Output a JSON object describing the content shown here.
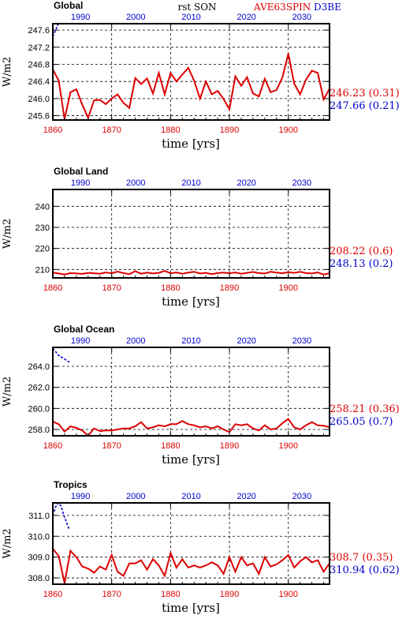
{
  "header": {
    "center": "rst SON",
    "label_red": "AVE63SPIN",
    "label_blue": "D3BE",
    "red_color": "#dd0000",
    "blue_color": "#0000cc"
  },
  "xlabel": "time [yrs]",
  "chart_data": [
    {
      "type": "line",
      "title": "Global",
      "ylabel": "W/m2",
      "ylim": [
        245.5,
        247.75
      ],
      "yticks": [
        245.6,
        246.0,
        246.4,
        246.8,
        247.2,
        247.6
      ],
      "ytick_labels": [
        "245.6",
        "246.0",
        "246.4",
        "246.8",
        "247.2",
        "247.6"
      ],
      "bottom_axis": {
        "range": [
          1860,
          1907
        ],
        "ticks": [
          1860,
          1870,
          1880,
          1890,
          1900
        ],
        "tick_labels": [
          "1860",
          "1870",
          "1880",
          "1890",
          "1900"
        ]
      },
      "top_axis": {
        "range": [
          1985,
          2035
        ],
        "ticks": [
          1990,
          2000,
          2010,
          2020,
          2030
        ],
        "tick_labels": [
          "1990",
          "2000",
          "2010",
          "2020",
          "2030"
        ]
      },
      "grid": true,
      "series": [
        {
          "name": "AVE63SPIN",
          "axis": "bottom",
          "style": "solid",
          "color": "#dd0000",
          "x": [
            1860,
            1861,
            1862,
            1863,
            1864,
            1865,
            1866,
            1867,
            1868,
            1869,
            1870,
            1871,
            1872,
            1873,
            1874,
            1875,
            1876,
            1877,
            1878,
            1879,
            1880,
            1881,
            1882,
            1883,
            1884,
            1885,
            1886,
            1887,
            1888,
            1889,
            1890,
            1891,
            1892,
            1893,
            1894,
            1895,
            1896,
            1897,
            1898,
            1899,
            1900,
            1901,
            1902,
            1903,
            1904,
            1905,
            1906,
            1907
          ],
          "y": [
            246.68,
            246.42,
            245.52,
            246.15,
            246.22,
            245.86,
            245.55,
            245.96,
            245.97,
            245.87,
            246.0,
            246.1,
            245.9,
            245.78,
            246.48,
            246.34,
            246.47,
            246.12,
            246.6,
            246.1,
            246.6,
            246.4,
            246.56,
            246.72,
            246.42,
            246.0,
            246.4,
            246.1,
            246.18,
            245.99,
            245.75,
            246.52,
            246.3,
            246.5,
            246.12,
            246.05,
            246.46,
            246.15,
            246.2,
            246.5,
            247.05,
            246.35,
            246.1,
            246.44,
            246.65,
            246.6,
            245.98,
            246.23
          ]
        },
        {
          "name": "D3BE",
          "axis": "top",
          "style": "dashed",
          "color": "#0000cc",
          "x": [
            1985,
            1985.5,
            1986
          ],
          "y": [
            247.45,
            247.6,
            247.75
          ]
        }
      ],
      "stats": [
        {
          "text": "246.23 (0.31)",
          "color": "#dd0000"
        },
        {
          "text": "247.66 (0.21)",
          "color": "#0000cc"
        }
      ]
    },
    {
      "type": "line",
      "title": "Global Land",
      "ylabel": "W/m2",
      "ylim": [
        206,
        248
      ],
      "yticks": [
        210,
        220,
        230,
        240
      ],
      "ytick_labels": [
        "210",
        "220",
        "230",
        "240"
      ],
      "bottom_axis": {
        "range": [
          1860,
          1907
        ],
        "ticks": [
          1860,
          1870,
          1880,
          1890,
          1900
        ],
        "tick_labels": [
          "1860",
          "1870",
          "1880",
          "1890",
          "1900"
        ]
      },
      "top_axis": {
        "range": [
          1985,
          2035
        ],
        "ticks": [
          1990,
          2000,
          2010,
          2020,
          2030
        ],
        "tick_labels": [
          "1990",
          "2000",
          "2010",
          "2020",
          "2030"
        ]
      },
      "grid": true,
      "series": [
        {
          "name": "AVE63SPIN",
          "axis": "bottom",
          "style": "solid",
          "color": "#dd0000",
          "x": [
            1860,
            1861,
            1862,
            1863,
            1864,
            1865,
            1866,
            1867,
            1868,
            1869,
            1870,
            1871,
            1872,
            1873,
            1874,
            1875,
            1876,
            1877,
            1878,
            1879,
            1880,
            1881,
            1882,
            1883,
            1884,
            1885,
            1886,
            1887,
            1888,
            1889,
            1890,
            1891,
            1892,
            1893,
            1894,
            1895,
            1896,
            1897,
            1898,
            1899,
            1900,
            1901,
            1902,
            1903,
            1904,
            1905,
            1906,
            1907
          ],
          "y": [
            208.5,
            208.1,
            207.6,
            208.3,
            208.1,
            207.9,
            208.4,
            208.2,
            208.0,
            208.6,
            208.2,
            209.0,
            208.3,
            207.8,
            209.2,
            208.0,
            208.5,
            208.1,
            208.4,
            209.3,
            208.2,
            208.6,
            208.0,
            208.5,
            208.9,
            208.1,
            208.4,
            207.8,
            208.3,
            208.5,
            208.2,
            208.6,
            208.0,
            208.4,
            208.8,
            208.3,
            208.1,
            208.9,
            208.5,
            208.2,
            208.7,
            208.4,
            208.9,
            208.3,
            208.1,
            208.6,
            207.6,
            208.22
          ]
        }
      ],
      "stats": [
        {
          "text": "208.22 (0.6)",
          "color": "#dd0000"
        },
        {
          "text": "248.13 (0.2)",
          "color": "#0000cc"
        }
      ]
    },
    {
      "type": "line",
      "title": "Global Ocean",
      "ylabel": "W/m2",
      "ylim": [
        257.4,
        265.8
      ],
      "yticks": [
        258.0,
        260.0,
        262.0,
        264.0
      ],
      "ytick_labels": [
        "258.0",
        "260.0",
        "262.0",
        "264.0"
      ],
      "bottom_axis": {
        "range": [
          1860,
          1907
        ],
        "ticks": [
          1860,
          1870,
          1880,
          1890,
          1900
        ],
        "tick_labels": [
          "1860",
          "1870",
          "1880",
          "1890",
          "1900"
        ]
      },
      "top_axis": {
        "range": [
          1985,
          2035
        ],
        "ticks": [
          1990,
          2000,
          2010,
          2020,
          2030
        ],
        "tick_labels": [
          "1990",
          "2000",
          "2010",
          "2020",
          "2030"
        ]
      },
      "grid": true,
      "series": [
        {
          "name": "AVE63SPIN",
          "axis": "bottom",
          "style": "solid",
          "color": "#dd0000",
          "x": [
            1860,
            1861,
            1862,
            1863,
            1864,
            1865,
            1866,
            1867,
            1868,
            1869,
            1870,
            1871,
            1872,
            1873,
            1874,
            1875,
            1876,
            1877,
            1878,
            1879,
            1880,
            1881,
            1882,
            1883,
            1884,
            1885,
            1886,
            1887,
            1888,
            1889,
            1890,
            1891,
            1892,
            1893,
            1894,
            1895,
            1896,
            1897,
            1898,
            1899,
            1900,
            1901,
            1902,
            1903,
            1904,
            1905,
            1906,
            1907
          ],
          "y": [
            258.75,
            258.5,
            257.8,
            258.3,
            258.15,
            257.9,
            257.4,
            258.1,
            257.85,
            257.9,
            257.9,
            258.0,
            258.1,
            258.1,
            258.3,
            258.7,
            258.1,
            258.2,
            258.4,
            258.3,
            258.5,
            258.5,
            258.8,
            258.5,
            258.4,
            258.2,
            258.3,
            258.1,
            258.3,
            258.0,
            257.75,
            258.5,
            258.4,
            258.5,
            258.1,
            257.9,
            258.4,
            258.0,
            258.1,
            258.6,
            259.0,
            258.2,
            258.0,
            258.4,
            258.7,
            258.4,
            258.35,
            258.21
          ]
        },
        {
          "name": "D3BE",
          "axis": "top",
          "style": "dashed",
          "color": "#0000cc",
          "x": [
            1985,
            1985.5,
            1986,
            1986.5,
            1987,
            1987.5,
            1988
          ],
          "y": [
            265.7,
            265.4,
            265.05,
            264.9,
            264.75,
            264.55,
            264.4
          ]
        }
      ],
      "stats": [
        {
          "text": "258.21 (0.36)",
          "color": "#dd0000"
        },
        {
          "text": "265.05 (0.7)",
          "color": "#0000cc"
        }
      ]
    },
    {
      "type": "line",
      "title": "Tropics",
      "ylabel": "W/m2",
      "ylim": [
        307.7,
        311.6
      ],
      "yticks": [
        308.0,
        309.0,
        310.0,
        311.0
      ],
      "ytick_labels": [
        "308.0",
        "309.0",
        "310.0",
        "311.0"
      ],
      "bottom_axis": {
        "range": [
          1860,
          1907
        ],
        "ticks": [
          1860,
          1870,
          1880,
          1890,
          1900
        ],
        "tick_labels": [
          "1860",
          "1870",
          "1880",
          "1890",
          "1900"
        ]
      },
      "top_axis": {
        "range": [
          1985,
          2035
        ],
        "ticks": [
          1990,
          2000,
          2010,
          2020,
          2030
        ],
        "tick_labels": [
          "1990",
          "2000",
          "2010",
          "2020",
          "2030"
        ]
      },
      "grid": true,
      "series": [
        {
          "name": "AVE63SPIN",
          "axis": "bottom",
          "style": "solid",
          "color": "#dd0000",
          "x": [
            1860,
            1861,
            1862,
            1863,
            1864,
            1865,
            1866,
            1867,
            1868,
            1869,
            1870,
            1871,
            1872,
            1873,
            1874,
            1875,
            1876,
            1877,
            1878,
            1879,
            1880,
            1881,
            1882,
            1883,
            1884,
            1885,
            1886,
            1887,
            1888,
            1889,
            1890,
            1891,
            1892,
            1893,
            1894,
            1895,
            1896,
            1897,
            1898,
            1899,
            1900,
            1901,
            1902,
            1903,
            1904,
            1905,
            1906,
            1907
          ],
          "y": [
            309.4,
            309.05,
            307.75,
            309.3,
            309.0,
            308.55,
            308.45,
            308.25,
            308.55,
            308.4,
            309.1,
            308.3,
            308.1,
            308.7,
            308.7,
            308.85,
            308.4,
            308.9,
            308.6,
            308.1,
            309.2,
            308.5,
            308.9,
            308.5,
            308.6,
            308.5,
            308.6,
            308.75,
            308.6,
            308.2,
            309.0,
            308.3,
            309.0,
            308.6,
            308.7,
            308.2,
            309.0,
            308.55,
            308.65,
            308.85,
            309.1,
            308.5,
            308.8,
            309.0,
            308.75,
            308.85,
            308.3,
            308.7
          ]
        },
        {
          "name": "D3BE",
          "axis": "top",
          "style": "dashed",
          "color": "#0000cc",
          "x": [
            1985,
            1985.5,
            1986,
            1986.5,
            1987,
            1987.5,
            1988
          ],
          "y": [
            311.0,
            311.4,
            311.6,
            311.45,
            311.0,
            310.65,
            310.3
          ]
        }
      ],
      "stats": [
        {
          "text": "308.7 (0.35)",
          "color": "#dd0000"
        },
        {
          "text": "310.94 (0.62)",
          "color": "#0000cc"
        }
      ]
    }
  ]
}
